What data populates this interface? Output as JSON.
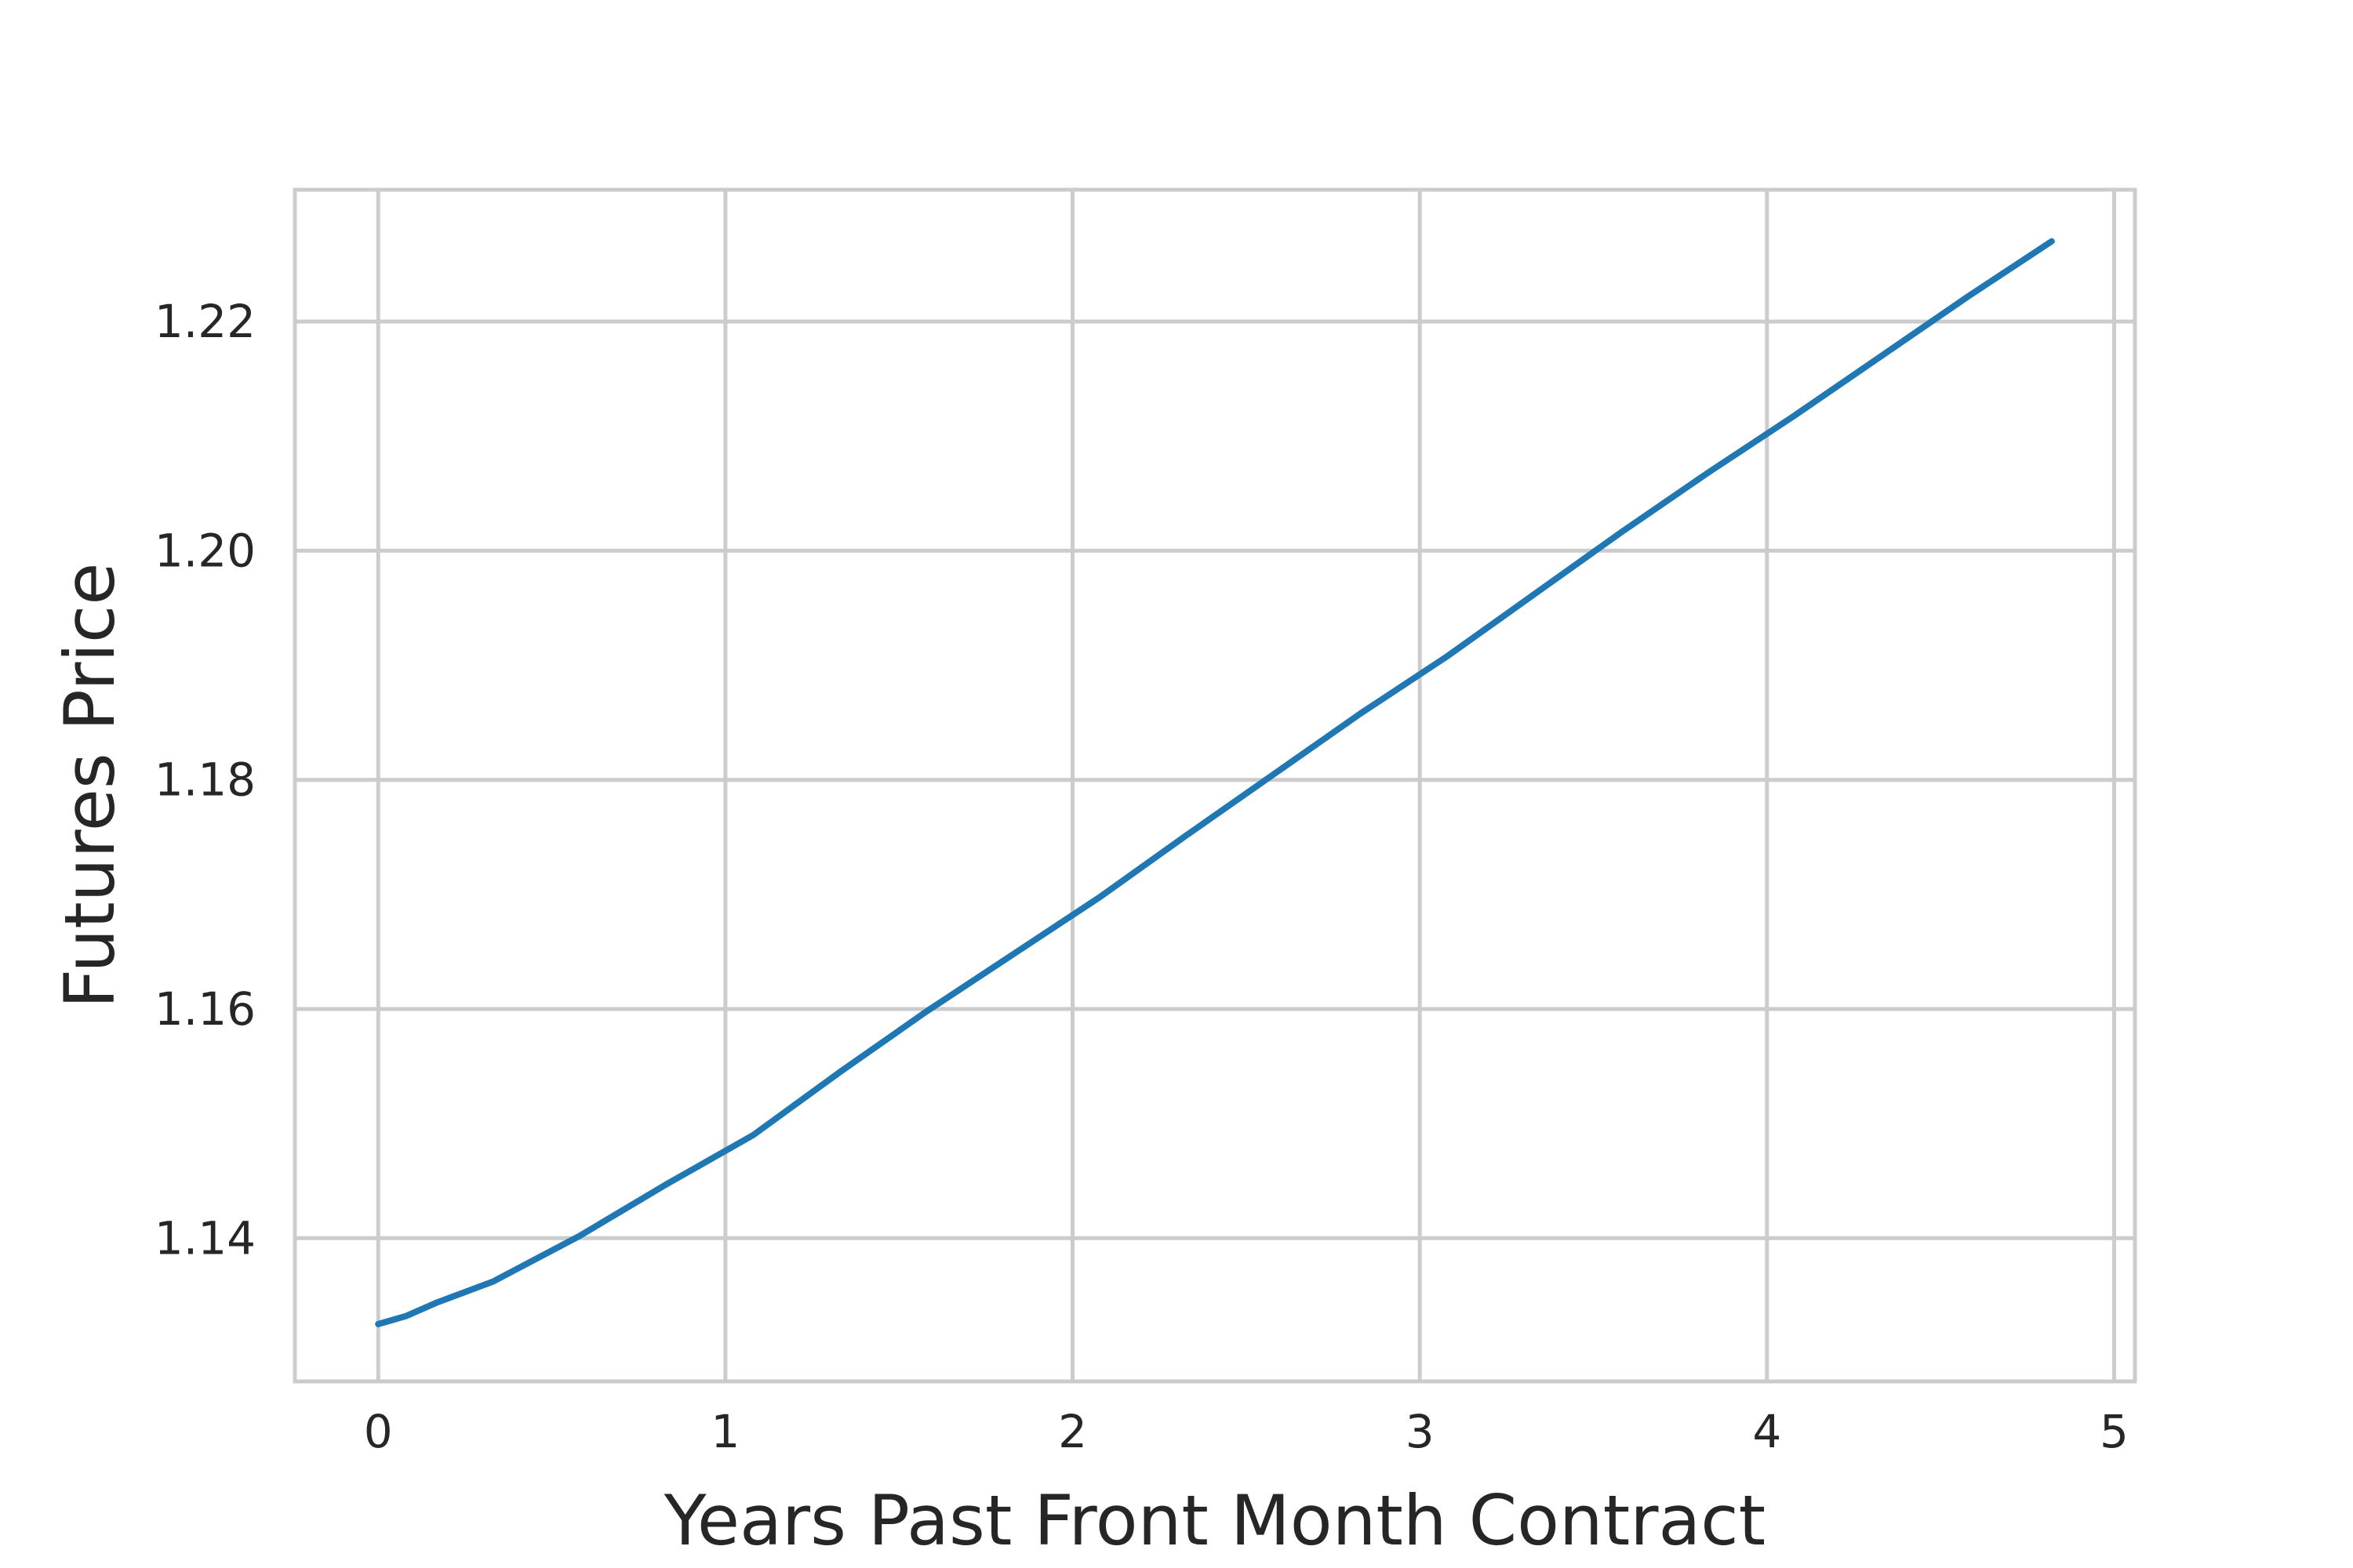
{
  "chart_data": {
    "type": "line",
    "title": "",
    "xlabel": "Years Past Front Month Contract",
    "ylabel": "Futures Price",
    "xlim": [
      -0.24,
      5.06
    ],
    "ylim": [
      1.1275,
      1.2315
    ],
    "x_ticks": [
      0,
      1,
      2,
      3,
      4,
      5
    ],
    "x_tick_labels": [
      "0",
      "1",
      "2",
      "3",
      "4",
      "5"
    ],
    "y_ticks": [
      1.14,
      1.16,
      1.18,
      1.2,
      1.22
    ],
    "y_tick_labels": [
      "1.14",
      "1.16",
      "1.18",
      "1.20",
      "1.22"
    ],
    "grid": true,
    "series": [
      {
        "color": "#1f77b4",
        "x": [
          0.0,
          0.08,
          0.17,
          0.33,
          0.58,
          0.83,
          1.08,
          1.33,
          1.58,
          1.83,
          2.08,
          2.33,
          2.58,
          2.83,
          3.08,
          3.33,
          3.58,
          3.83,
          4.08,
          4.33,
          4.58,
          4.82
        ],
        "y": [
          1.1325,
          1.1332,
          1.1344,
          1.1362,
          1.1402,
          1.1447,
          1.149,
          1.1545,
          1.1598,
          1.1648,
          1.1698,
          1.1752,
          1.1805,
          1.1858,
          1.1908,
          1.1962,
          1.2016,
          1.2068,
          1.2118,
          1.217,
          1.2222,
          1.227
        ]
      }
    ]
  }
}
